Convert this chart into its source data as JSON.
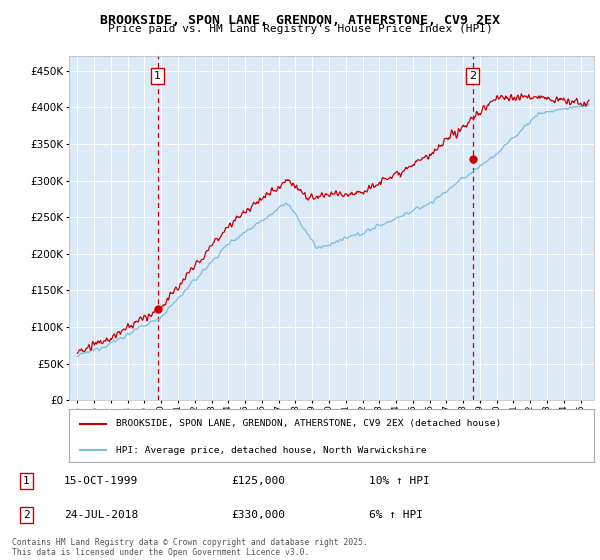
{
  "title": "BROOKSIDE, SPON LANE, GRENDON, ATHERSTONE, CV9 2EX",
  "subtitle": "Price paid vs. HM Land Registry's House Price Index (HPI)",
  "bg_color": "#dce9f7",
  "hpi_color": "#7bbde0",
  "price_color": "#cc0000",
  "marker1_date_x": 1999.79,
  "marker1_price": 125000,
  "marker2_date_x": 2018.56,
  "marker2_price": 330000,
  "ylim": [
    0,
    470000
  ],
  "xlim_start": 1994.5,
  "xlim_end": 2025.8,
  "yticks": [
    0,
    50000,
    100000,
    150000,
    200000,
    250000,
    300000,
    350000,
    400000,
    450000
  ],
  "xticks": [
    1995,
    1996,
    1997,
    1998,
    1999,
    2000,
    2001,
    2002,
    2003,
    2004,
    2005,
    2006,
    2007,
    2008,
    2009,
    2010,
    2011,
    2012,
    2013,
    2014,
    2015,
    2016,
    2017,
    2018,
    2019,
    2020,
    2021,
    2022,
    2023,
    2024,
    2025
  ],
  "legend_label_red": "BROOKSIDE, SPON LANE, GRENDON, ATHERSTONE, CV9 2EX (detached house)",
  "legend_label_blue": "HPI: Average price, detached house, North Warwickshire",
  "annotation1_date": "15-OCT-1999",
  "annotation1_price_str": "£125,000",
  "annotation1_hpi": "10% ↑ HPI",
  "annotation2_date": "24-JUL-2018",
  "annotation2_price_str": "£330,000",
  "annotation2_hpi": "6% ↑ HPI",
  "footer": "Contains HM Land Registry data © Crown copyright and database right 2025.\nThis data is licensed under the Open Government Licence v3.0."
}
